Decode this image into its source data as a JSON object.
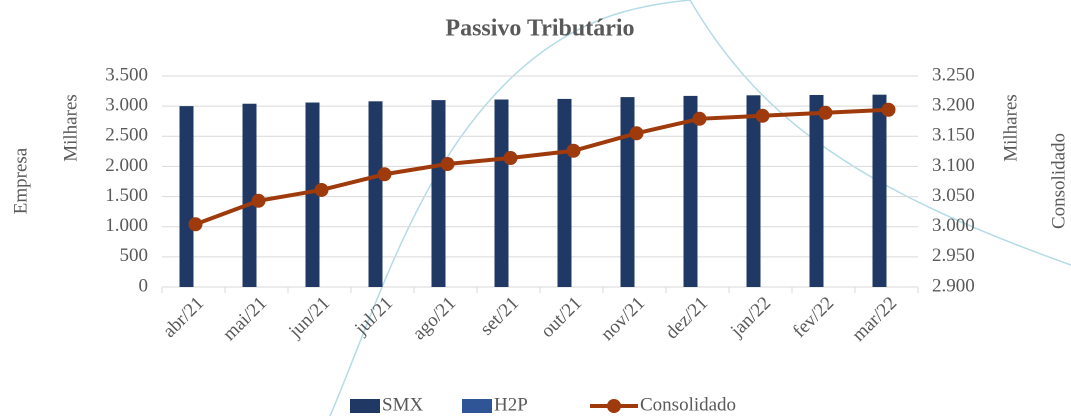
{
  "chart_data": {
    "type": "bar-line",
    "title": "Passivo Tributário",
    "ylabel": "Empresa",
    "yunit": "Milhares",
    "y2label": "Consolidado",
    "y2unit": "Milhares",
    "categories": [
      "abr/21",
      "mai/21",
      "jun/21",
      "jul/21",
      "ago/21",
      "set/21",
      "out/21",
      "nov/21",
      "dez/21",
      "jan/22",
      "fev/22",
      "mar/22"
    ],
    "series": [
      {
        "name": "SMX",
        "color": "#1f3864",
        "type": "bar",
        "values": [
          3000,
          3040,
          3060,
          3080,
          3100,
          3110,
          3120,
          3150,
          3170,
          3180,
          3185,
          3190
        ]
      },
      {
        "name": "H2P",
        "color": "#2f5597",
        "type": "bar",
        "values": [
          0,
          0,
          0,
          0,
          0,
          0,
          0,
          0,
          0,
          0,
          0,
          0
        ]
      },
      {
        "name": "Consolidado",
        "color": "#9e3a0b",
        "type": "line",
        "axis": "y2",
        "values": [
          3004,
          3043,
          3061,
          3087,
          3104,
          3114,
          3126,
          3155,
          3179,
          3184,
          3189,
          3194
        ]
      }
    ],
    "ylim": [
      0,
      3500
    ],
    "yticks": [
      0,
      500,
      {
        "value": 1000,
        "label": "1.000"
      },
      {
        "value": 1500,
        "label": "1.500"
      },
      {
        "value": 2000,
        "label": "2.000"
      },
      {
        "value": 2500,
        "label": "2.500"
      },
      {
        "value": 3000,
        "label": "3.000"
      },
      {
        "value": 3500,
        "label": "3.500"
      }
    ],
    "y2lim": [
      2900,
      3250
    ],
    "y2ticks": [
      {
        "value": 2900,
        "label": "2.900"
      },
      {
        "value": 2950,
        "label": "2.950"
      },
      {
        "value": 3000,
        "label": "3.000"
      },
      {
        "value": 3050,
        "label": "3.050"
      },
      {
        "value": 3100,
        "label": "3.100"
      },
      {
        "value": 3150,
        "label": "3.150"
      },
      {
        "value": 3200,
        "label": "3.200"
      },
      {
        "value": 3250,
        "label": "3.250"
      }
    ],
    "grid": true
  }
}
